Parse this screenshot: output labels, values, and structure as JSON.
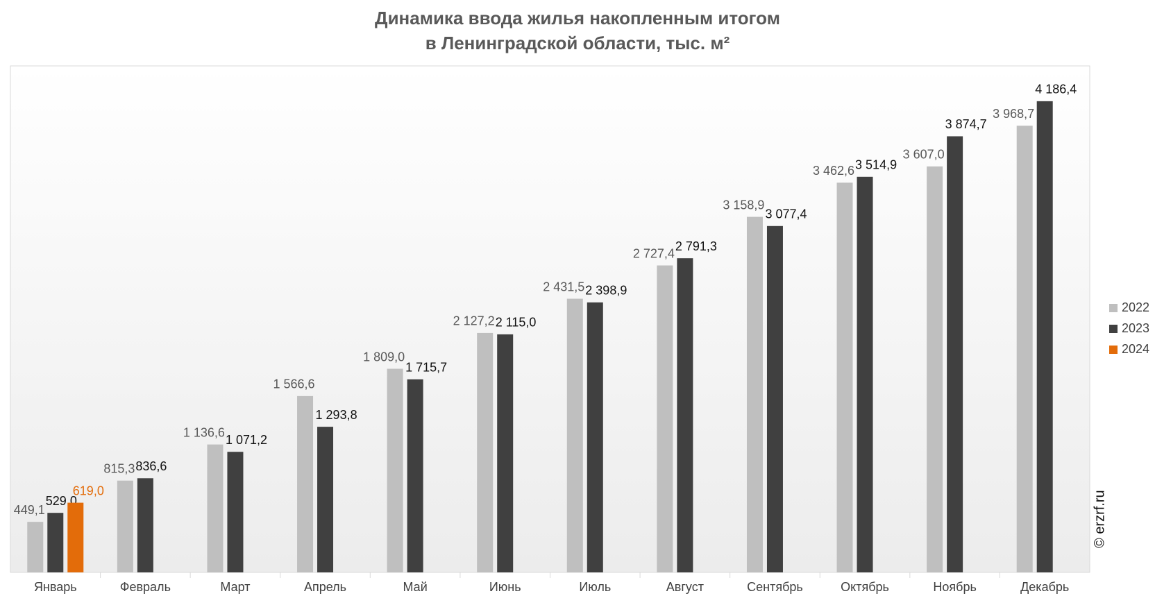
{
  "chart_data": {
    "type": "bar",
    "title": [
      "Динамика ввода жилья накопленным итогом",
      "в Ленинградской области, тыс. м²"
    ],
    "categories": [
      "Январь",
      "Февраль",
      "Март",
      "Апрель",
      "Май",
      "Июнь",
      "Июль",
      "Август",
      "Сентябрь",
      "Октябрь",
      "Ноябрь",
      "Декабрь"
    ],
    "series": [
      {
        "name": "2022",
        "color": "#bfbfbf",
        "label_color": "#595959",
        "values": [
          449.1,
          815.3,
          1136.6,
          1566.6,
          1809.0,
          2127.2,
          2431.5,
          2727.4,
          3158.9,
          3462.6,
          3607.0,
          3968.7
        ],
        "value_labels": [
          "449,1",
          "815,3",
          "1 136,6",
          "1 566,6",
          "1 809,0",
          "2 127,2",
          "2 431,5",
          "2 727,4",
          "3 158,9",
          "3 462,6",
          "3 607,0",
          "3 968,7"
        ]
      },
      {
        "name": "2023",
        "color": "#404040",
        "label_color": "#111111",
        "values": [
          529.0,
          836.6,
          1071.2,
          1293.8,
          1715.7,
          2115.0,
          2398.9,
          2791.3,
          3077.4,
          3514.9,
          3874.7,
          4186.4
        ],
        "value_labels": [
          "529,0",
          "836,6",
          "1 071,2",
          "1 293,8",
          "1 715,7",
          "2 115,0",
          "2 398,9",
          "2 791,3",
          "3 077,4",
          "3 514,9",
          "3 874,7",
          "4 186,4"
        ]
      },
      {
        "name": "2024",
        "color": "#e36c0a",
        "label_color": "#e36c0a",
        "values": [
          619.0,
          null,
          null,
          null,
          null,
          null,
          null,
          null,
          null,
          null,
          null,
          null
        ],
        "value_labels": [
          "619,0",
          null,
          null,
          null,
          null,
          null,
          null,
          null,
          null,
          null,
          null,
          null
        ]
      }
    ],
    "ylim": [
      0,
      4500
    ],
    "legend": "right",
    "watermark": "© erzrf.ru"
  }
}
